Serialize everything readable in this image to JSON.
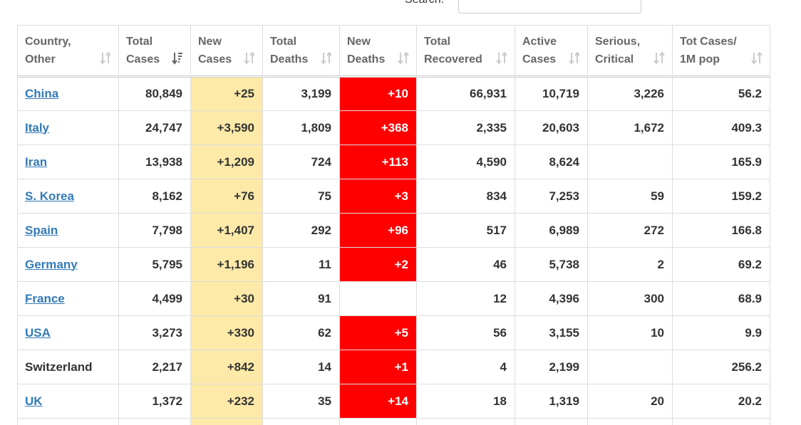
{
  "search": {
    "label": "Search:"
  },
  "table": {
    "sort": {
      "column": 1,
      "direction": "descending"
    },
    "header": [
      [
        "Country,",
        "Other"
      ],
      [
        "Total",
        "Cases"
      ],
      [
        "New",
        "Cases"
      ],
      [
        "Total",
        "Deaths"
      ],
      [
        "New",
        "Deaths"
      ],
      [
        "Total",
        "Recovered"
      ],
      [
        "Active",
        "Cases"
      ],
      [
        "Serious,",
        "Critical"
      ],
      [
        "Tot Cases/",
        "1M pop"
      ]
    ],
    "rows": [
      {
        "link": true,
        "cells": [
          "China",
          "80,849",
          "+25",
          "3,199",
          "+10",
          "66,931",
          "10,719",
          "3,226",
          "56.2"
        ]
      },
      {
        "link": true,
        "cells": [
          "Italy",
          "24,747",
          "+3,590",
          "1,809",
          "+368",
          "2,335",
          "20,603",
          "1,672",
          "409.3"
        ]
      },
      {
        "link": true,
        "cells": [
          "Iran",
          "13,938",
          "+1,209",
          "724",
          "+113",
          "4,590",
          "8,624",
          null,
          "165.9"
        ]
      },
      {
        "link": true,
        "cells": [
          "S. Korea",
          "8,162",
          "+76",
          "75",
          "+3",
          "834",
          "7,253",
          "59",
          "159.2"
        ]
      },
      {
        "link": true,
        "cells": [
          "Spain",
          "7,798",
          "+1,407",
          "292",
          "+96",
          "517",
          "6,989",
          "272",
          "166.8"
        ]
      },
      {
        "link": true,
        "cells": [
          "Germany",
          "5,795",
          "+1,196",
          "11",
          "+2",
          "46",
          "5,738",
          "2",
          "69.2"
        ]
      },
      {
        "link": true,
        "cells": [
          "France",
          "4,499",
          "+30",
          "91",
          null,
          "12",
          "4,396",
          "300",
          "68.9"
        ]
      },
      {
        "link": true,
        "cells": [
          "USA",
          "3,273",
          "+330",
          "62",
          "+5",
          "56",
          "3,155",
          "10",
          "9.9"
        ]
      },
      {
        "link": false,
        "cells": [
          "Switzerland",
          "2,217",
          "+842",
          "14",
          "+1",
          "4",
          "2,199",
          null,
          "256.2"
        ]
      },
      {
        "link": true,
        "cells": [
          "UK",
          "1,372",
          "+232",
          "35",
          "+14",
          "18",
          "1,319",
          "20",
          "20.2"
        ]
      }
    ]
  }
}
